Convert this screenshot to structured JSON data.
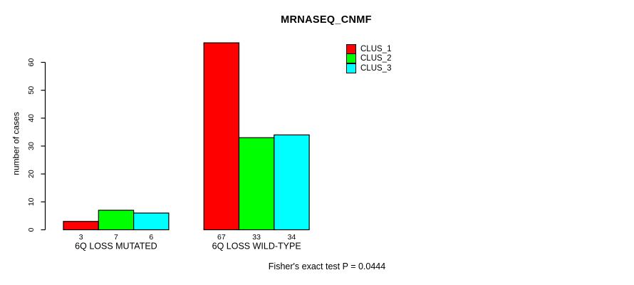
{
  "title": "MRNASEQ_CNMF",
  "footer": "Fisher's exact test P = 0.0444",
  "chart_data": {
    "type": "bar",
    "title": "MRNASEQ_CNMF",
    "categories": [
      "6Q LOSS MUTATED",
      "6Q LOSS WILD-TYPE"
    ],
    "series": [
      {
        "name": "CLUS_1",
        "color": "#ff0000",
        "values": [
          3,
          67
        ]
      },
      {
        "name": "CLUS_2",
        "color": "#00ff00",
        "values": [
          7,
          33
        ]
      },
      {
        "name": "CLUS_3",
        "color": "#00ffff",
        "values": [
          6,
          34
        ]
      }
    ],
    "xlabel": "",
    "ylabel": "number of cases",
    "yticks": [
      0,
      10,
      20,
      30,
      40,
      50,
      60
    ],
    "ylim": [
      0,
      68
    ],
    "grid": false,
    "bar_value_labels_shown": true,
    "bar_border_color": "#000000",
    "axis_color": "#000000",
    "legend_position": "top-right",
    "annotation": "Fisher's exact test P = 0.0444"
  }
}
